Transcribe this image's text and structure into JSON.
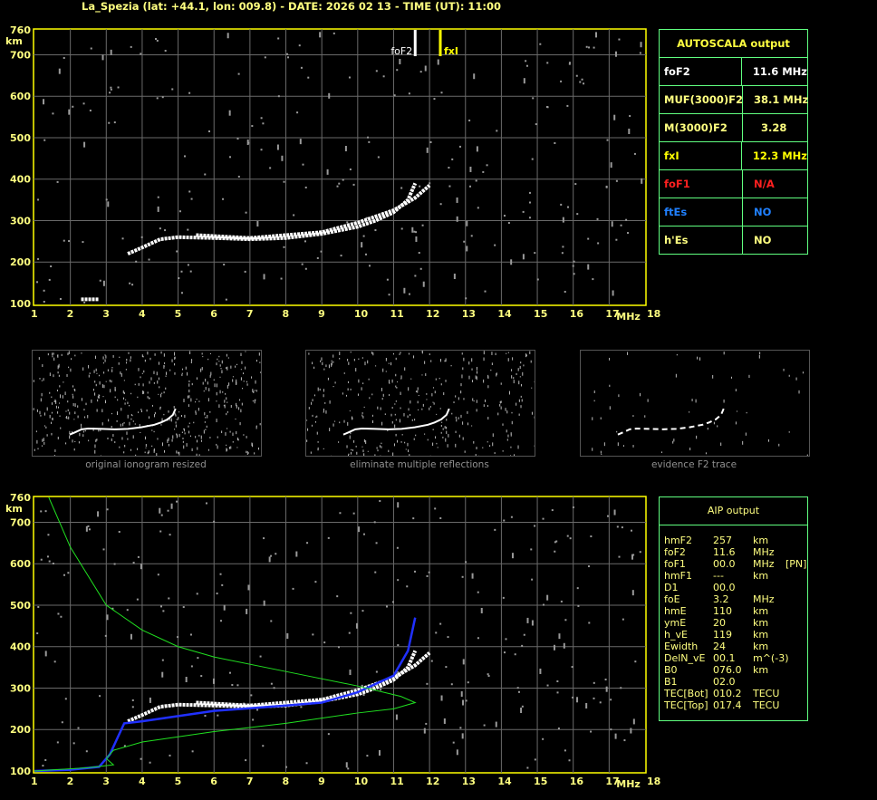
{
  "header": {
    "title": "La_Spezia (lat: +44.1, lon: 009.8) - DATE: 2026 02 13 - TIME (UT): 11:00"
  },
  "colors": {
    "axis": "#ffff00",
    "grid": "#6a6a6a",
    "trace": "#ffffff",
    "profile": "#20e020",
    "fit": "#2030ff",
    "table_border": "#60ff80"
  },
  "markers": {
    "foF2_label": "foF2",
    "foF2_value": 11.6,
    "fxI_label": "fxI",
    "fxI_value": 12.3
  },
  "autoscala": {
    "title": "AUTOSCALA output",
    "rows": [
      {
        "key": "foF2",
        "value": "11.6 MHz",
        "color": "#ffffff"
      },
      {
        "key": "MUF(3000)F2",
        "value": "38.1 MHz",
        "color": "#ffff80"
      },
      {
        "key": "M(3000)F2",
        "value": "  3.28",
        "color": "#ffff80"
      },
      {
        "key": "fxI",
        "value": "12.3 MHz",
        "color": "#ffff00"
      },
      {
        "key": "foF1",
        "value": "N/A",
        "color": "#ff2020"
      },
      {
        "key": "ftEs",
        "value": "NO",
        "color": "#2080ff"
      },
      {
        "key": "h'Es",
        "value": "NO",
        "color": "#ffff80"
      }
    ]
  },
  "thumbnails": [
    {
      "caption": "original ionogram resized"
    },
    {
      "caption": "eliminate multiple reflections"
    },
    {
      "caption": "evidence F2 trace"
    }
  ],
  "aip": {
    "title": "AIP output",
    "rows": [
      [
        "hmF2",
        "257",
        "km",
        ""
      ],
      [
        "foF2",
        "11.6",
        "MHz",
        ""
      ],
      [
        "foF1",
        "00.0",
        "MHz",
        "[PN]"
      ],
      [
        "hmF1",
        "---",
        "km",
        ""
      ],
      [
        "D1",
        "00.0",
        "",
        ""
      ],
      [
        "foE",
        "3.2",
        "MHz",
        ""
      ],
      [
        "hmE",
        "110",
        "km",
        ""
      ],
      [
        "ymE",
        "20",
        "km",
        ""
      ],
      [
        "h_vE",
        "119",
        "km",
        ""
      ],
      [
        "Ewidth",
        "24",
        "km",
        ""
      ],
      [
        "DelN_vE",
        "00.1",
        "m^(-3)",
        ""
      ],
      [
        "B0",
        "076.0",
        "km",
        ""
      ],
      [
        "B1",
        "02.0",
        "",
        ""
      ],
      [
        "TEC[Bot]",
        "010.2",
        "TECU",
        ""
      ],
      [
        "TEC[Top]",
        "017.4",
        "TECU",
        ""
      ]
    ]
  },
  "chart_data": [
    {
      "type": "scatter",
      "xlim": [
        1,
        18
      ],
      "ylim": [
        100,
        760
      ],
      "xlabel": "MHz",
      "ylabel": "km",
      "xticks": [
        "1",
        "2",
        "3",
        "4",
        "5",
        "6",
        "7",
        "8",
        "9",
        "10",
        "11",
        "12",
        "13",
        "14",
        "15",
        "16",
        "17",
        "18"
      ],
      "yticks": [
        "100",
        "200",
        "300",
        "400",
        "500",
        "600",
        "700",
        "760"
      ],
      "grid": true,
      "series": [
        {
          "role": "o-trace",
          "color": "#ffffff",
          "x": [
            3.6,
            4,
            4.5,
            5,
            6,
            7,
            8,
            9,
            10,
            10.5,
            11,
            11.4,
            11.6
          ],
          "y": [
            220,
            235,
            255,
            260,
            258,
            255,
            258,
            268,
            285,
            300,
            320,
            350,
            390
          ]
        },
        {
          "role": "x-trace",
          "color": "#ffffff",
          "x": [
            5.5,
            7,
            9,
            10,
            11,
            11.6,
            12
          ],
          "y": [
            265,
            258,
            272,
            295,
            325,
            355,
            385
          ]
        },
        {
          "role": "e-trace",
          "color": "#ffffff",
          "x": [
            2.3,
            2.8
          ],
          "y": [
            110,
            110
          ]
        }
      ]
    },
    {
      "type": "line",
      "xlim": [
        1,
        18
      ],
      "ylim": [
        100,
        760
      ],
      "xlabel": "MHz",
      "ylabel": "km",
      "xticks": [
        "1",
        "2",
        "3",
        "4",
        "5",
        "6",
        "7",
        "8",
        "9",
        "10",
        "11",
        "12",
        "13",
        "14",
        "15",
        "16",
        "17",
        "18"
      ],
      "yticks": [
        "100",
        "200",
        "300",
        "400",
        "500",
        "600",
        "700",
        "760"
      ],
      "grid": true,
      "series": [
        {
          "role": "o-trace",
          "color": "#ffffff",
          "x": [
            3.6,
            4,
            4.5,
            5,
            6,
            7,
            8,
            9,
            10,
            10.5,
            11,
            11.4,
            11.6
          ],
          "y": [
            220,
            235,
            255,
            260,
            258,
            255,
            258,
            268,
            285,
            300,
            320,
            350,
            390
          ]
        },
        {
          "role": "x-trace",
          "color": "#ffffff",
          "x": [
            5.5,
            7,
            9,
            10,
            11,
            11.6,
            12
          ],
          "y": [
            265,
            258,
            272,
            295,
            325,
            355,
            385
          ]
        },
        {
          "role": "fit",
          "color": "#2030ff",
          "x": [
            1,
            2,
            2.8,
            3.1,
            3.5,
            4,
            6,
            8,
            9,
            10,
            11,
            11.4,
            11.6
          ],
          "y": [
            100,
            103,
            110,
            140,
            215,
            220,
            245,
            258,
            265,
            290,
            330,
            390,
            470
          ]
        },
        {
          "role": "profile",
          "color": "#20e020",
          "x": [
            1.4,
            2,
            3,
            4,
            5,
            6,
            8,
            10,
            11.2,
            11.6,
            11,
            10,
            8,
            6,
            4,
            3.2,
            3,
            3.2,
            2.5,
            1
          ],
          "y": [
            760,
            640,
            500,
            440,
            400,
            375,
            340,
            305,
            280,
            265,
            250,
            240,
            215,
            195,
            170,
            150,
            130,
            115,
            108,
            100
          ]
        }
      ]
    }
  ]
}
